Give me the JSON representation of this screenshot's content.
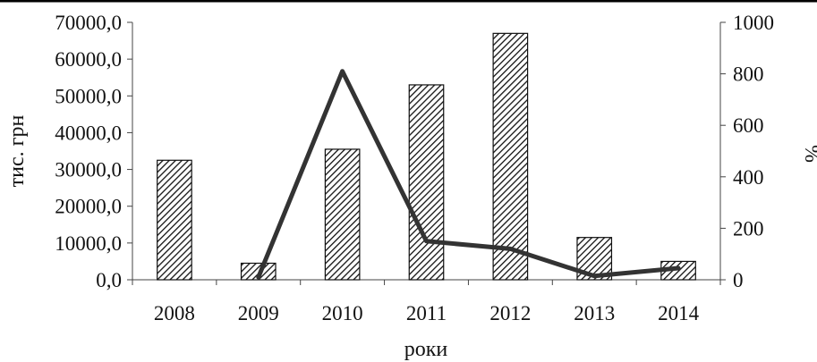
{
  "chart_data": {
    "type": "bar",
    "title": "",
    "categories": [
      "2008",
      "2009",
      "2010",
      "2011",
      "2012",
      "2013",
      "2014"
    ],
    "xlabel": "роки",
    "ylabel": "тис. грн",
    "y2label": "%",
    "ylim": [
      0,
      70000
    ],
    "y2lim": [
      0,
      1000
    ],
    "yticks": [
      "0,0",
      "10000,0",
      "20000,0",
      "30000,0",
      "40000,0",
      "50000,0",
      "60000,0",
      "70000,0"
    ],
    "y2ticks": [
      "0",
      "200",
      "400",
      "600",
      "800",
      "1000"
    ],
    "series": [
      {
        "kind": "bar",
        "axis": "left",
        "values": [
          32500,
          4500,
          35500,
          53000,
          67000,
          11500,
          5000
        ]
      },
      {
        "kind": "line",
        "axis": "right",
        "x": [
          "2009",
          "2010",
          "2011",
          "2012",
          "2013",
          "2014"
        ],
        "values": [
          10,
          810,
          150,
          120,
          15,
          45
        ]
      }
    ],
    "grid": false,
    "legend": "none",
    "colors": {
      "bar_fill": "#ffffff",
      "bar_hatch": "#111111",
      "line": "#333333"
    }
  }
}
